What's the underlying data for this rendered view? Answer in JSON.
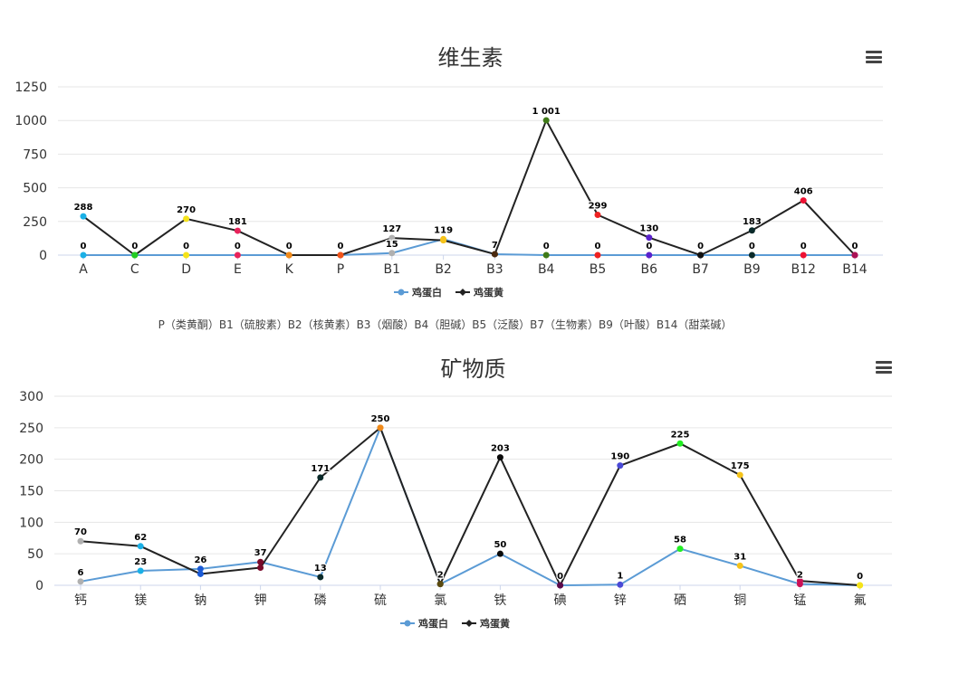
{
  "colors": {
    "egg_white": "#5b9bd5",
    "egg_yolk": "#222222",
    "grid": "#e6e6e6",
    "axis": "#ccd6eb",
    "title": "#333333"
  },
  "icons": {
    "menu": "hamburger-menu-icon"
  },
  "vitamin_note": "P（类黄酮）B1（硫胺素）B2（核黄素）B3（烟酸）B4（胆碱）B5（泛酸）B7（生物素）B9（叶酸）B14（甜菜碱）",
  "chart_data": [
    {
      "type": "line",
      "title": "维生素",
      "xlabel": "",
      "ylabel": "",
      "ylim": [
        0,
        1250
      ],
      "yticks": [
        0,
        250,
        500,
        750,
        1000,
        1250
      ],
      "ytick_labels": [
        "0",
        "250",
        "500",
        "750",
        "1000",
        "1250"
      ],
      "grid": true,
      "legend": "bottom-center",
      "categories": [
        "A",
        "C",
        "D",
        "E",
        "K",
        "P",
        "B1",
        "B2",
        "B3",
        "B4",
        "B5",
        "B6",
        "B7",
        "B9",
        "B12",
        "B14"
      ],
      "point_colors": [
        "#1ab0e6",
        "#22cc22",
        "#f5e31a",
        "#e8235b",
        "#f08a1a",
        "#f0541a",
        "#b0b0b0",
        "#f5c31a",
        "#4a2a10",
        "#3f7a18",
        "#ee2222",
        "#5a22cc",
        "#111111",
        "#0a2a2a",
        "#ee1133",
        "#aa1155"
      ],
      "series": [
        {
          "name": "鸡蛋白",
          "values": [
            0,
            0,
            0,
            0,
            0,
            0,
            15,
            119,
            7,
            0,
            0,
            0,
            0,
            0,
            0,
            0
          ],
          "labels": [
            "0",
            "0",
            "0",
            "0",
            "0",
            "0",
            "15",
            "119",
            "7",
            "0",
            "0",
            "0",
            "0",
            "0",
            "0",
            "0"
          ]
        },
        {
          "name": "鸡蛋黄",
          "values": [
            288,
            0,
            270,
            181,
            0,
            0,
            127,
            110,
            7,
            1001,
            299,
            130,
            0,
            183,
            406,
            0
          ],
          "labels": [
            "288",
            "0",
            "270",
            "181",
            "0",
            "0",
            "127",
            "",
            "",
            "1 001",
            "299",
            "130",
            "0",
            "183",
            "406",
            "0"
          ]
        }
      ]
    },
    {
      "type": "line",
      "title": "矿物质",
      "xlabel": "",
      "ylabel": "",
      "ylim": [
        0,
        300
      ],
      "yticks": [
        0,
        50,
        100,
        150,
        200,
        250,
        300
      ],
      "ytick_labels": [
        "0",
        "50",
        "100",
        "150",
        "200",
        "250",
        "300"
      ],
      "grid": true,
      "legend": "bottom-center",
      "categories": [
        "钙",
        "镁",
        "钠",
        "钾",
        "磷",
        "硫",
        "氯",
        "铁",
        "碘",
        "锌",
        "硒",
        "铜",
        "锰",
        "氟"
      ],
      "point_colors": [
        "#b0b0b0",
        "#1ab0e6",
        "#1a5ad6",
        "#7a0a2a",
        "#0a2a2a",
        "#f08a1a",
        "#5a4a10",
        "#0a0a0a",
        "#5a0a4a",
        "#4a4ad6",
        "#22ee22",
        "#f5c31a",
        "#cc1155",
        "#f5e31a"
      ],
      "series": [
        {
          "name": "鸡蛋白",
          "values": [
            6,
            23,
            26,
            37,
            13,
            250,
            2,
            50,
            0,
            1,
            58,
            31,
            2,
            0
          ],
          "labels": [
            "6",
            "23",
            "26",
            "37",
            "13",
            "250",
            "2",
            "50",
            "0",
            "1",
            "58",
            "31",
            "2",
            "0"
          ]
        },
        {
          "name": "鸡蛋黄",
          "values": [
            70,
            62,
            18,
            28,
            171,
            250,
            2,
            203,
            0,
            190,
            225,
            175,
            7,
            0
          ],
          "labels": [
            "70",
            "62",
            "",
            "",
            "171",
            "",
            "",
            "203",
            "",
            "190",
            "225",
            "175",
            "",
            ""
          ]
        }
      ]
    }
  ]
}
